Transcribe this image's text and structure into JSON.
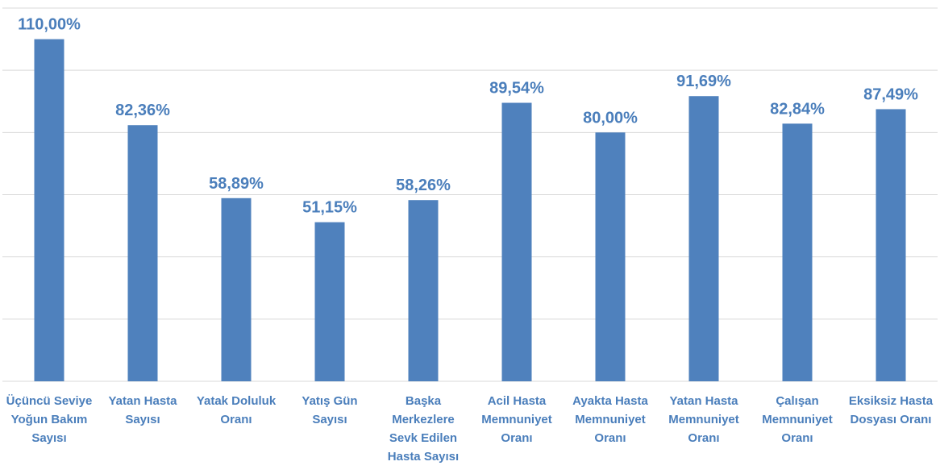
{
  "chart_data": {
    "type": "bar",
    "categories": [
      "Üçüncü Seviye Yoğun Bakım Sayısı",
      "Yatan Hasta Sayısı",
      "Yatak Doluluk Oranı",
      "Yatış Gün Sayısı",
      "Başka Merkezlere Sevk Edilen Hasta Sayısı",
      "Acil Hasta Memnuniyet Oranı",
      "Ayakta Hasta Memnuniyet Oranı",
      "Yatan Hasta Memnuniyet Oranı",
      "Çalışan Memnuniyet Oranı",
      "Eksiksiz Hasta Dosyası Oranı"
    ],
    "values": [
      110,
      82.36,
      58.89,
      51.15,
      58.26,
      89.54,
      80,
      91.69,
      82.84,
      87.49
    ],
    "value_labels": [
      "110,00%",
      "82,36%",
      "58,89%",
      "51,15%",
      "58,26%",
      "89,54%",
      "80,00%",
      "91,69%",
      "82,84%",
      "87,49%"
    ],
    "color": "#4f81bd",
    "ylim": [
      0,
      120
    ],
    "yticks": [
      0,
      20,
      40,
      60,
      80,
      100,
      120
    ],
    "grid": true
  }
}
